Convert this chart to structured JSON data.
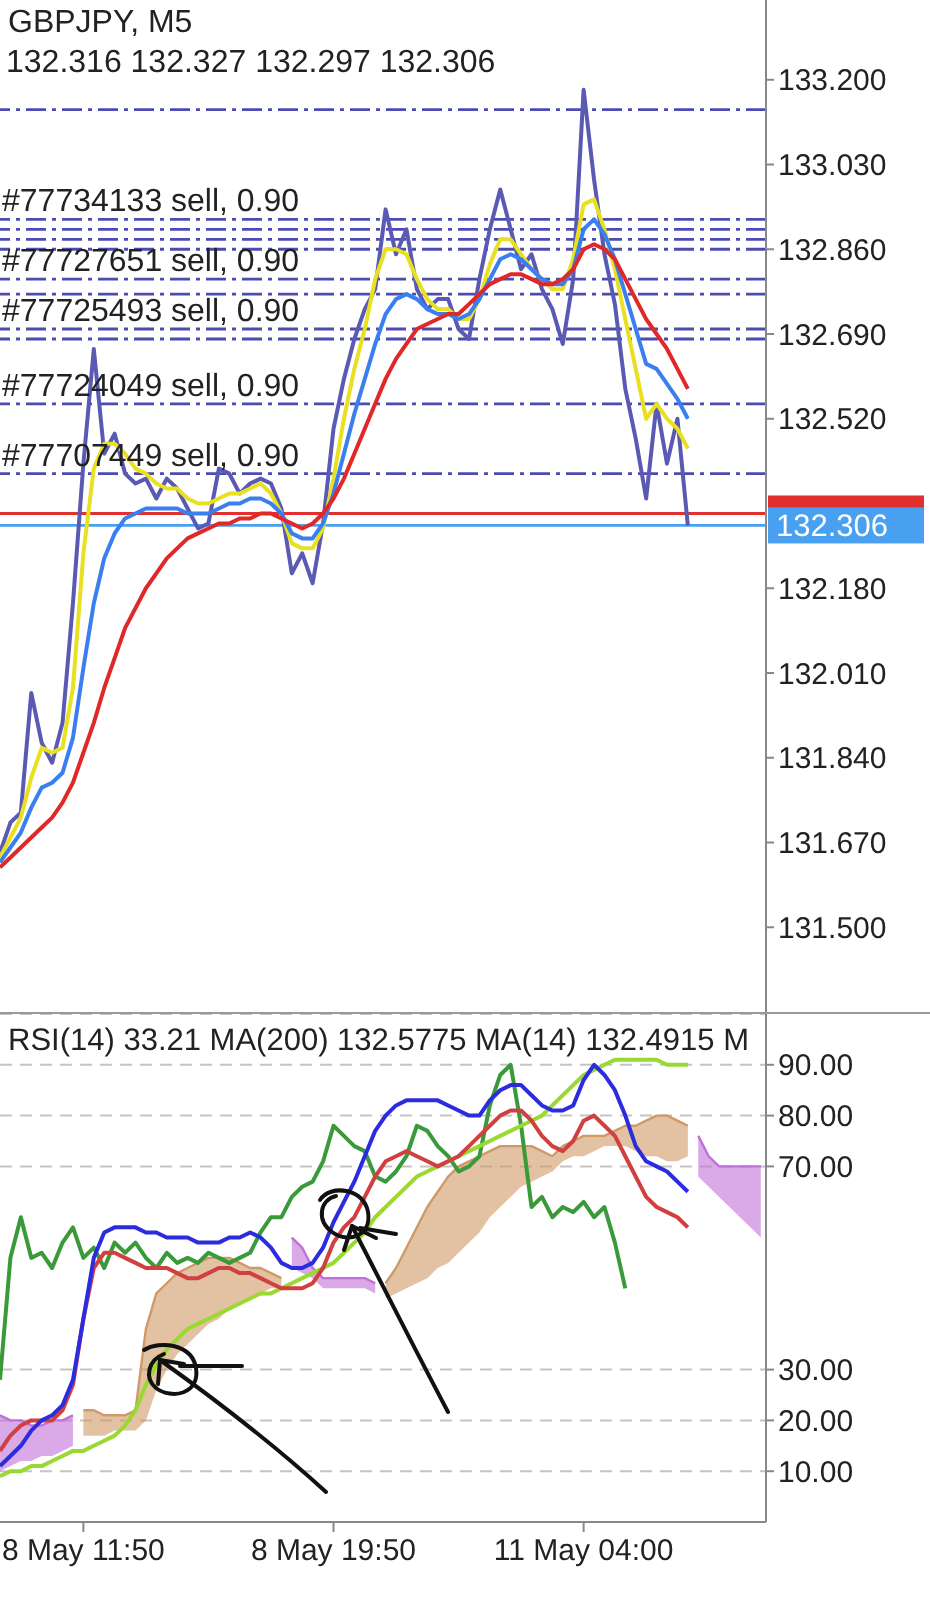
{
  "chart_data": [
    {
      "type": "line",
      "title": "GBPJPY, M5",
      "subtitle": "132.316 132.327 132.297 132.306",
      "categories": [
        null,
        null,
        null,
        null,
        null,
        null,
        null,
        null,
        null,
        null,
        null,
        null,
        null,
        null,
        null,
        null,
        null,
        null,
        null,
        null,
        null,
        null,
        null,
        null,
        null,
        null,
        null,
        null,
        null,
        null,
        null,
        null,
        null,
        null,
        null,
        null,
        null,
        null,
        null,
        null,
        null,
        null,
        null,
        null,
        null,
        null,
        null,
        null,
        null,
        null,
        null,
        null,
        null,
        null,
        null,
        null,
        null,
        null,
        null,
        null,
        null,
        null,
        null,
        null,
        null,
        null,
        null,
        null,
        null,
        null,
        null,
        null,
        null,
        null
      ],
      "series": [
        {
          "color": "#5a5ab4",
          "values": [
            131.65,
            131.71,
            131.73,
            131.97,
            131.87,
            131.83,
            131.91,
            132.15,
            132.43,
            132.66,
            132.45,
            132.49,
            132.41,
            132.39,
            132.4,
            132.36,
            132.4,
            132.38,
            132.34,
            132.3,
            132.31,
            132.42,
            132.41,
            132.37,
            132.39,
            132.4,
            132.39,
            132.34,
            132.21,
            132.25,
            132.19,
            132.31,
            132.5,
            132.6,
            132.68,
            132.74,
            132.78,
            132.94,
            132.85,
            132.9,
            132.78,
            132.74,
            132.76,
            132.76,
            132.7,
            132.68,
            132.8,
            132.9,
            132.98,
            132.9,
            132.82,
            132.85,
            132.78,
            132.74,
            132.67,
            132.8,
            133.18,
            133.0,
            132.85,
            132.75,
            132.58,
            132.48,
            132.36,
            132.55,
            132.43,
            132.52,
            132.306,
            null,
            null,
            null,
            null,
            null,
            null,
            null
          ]
        },
        {
          "color": "#e8e020",
          "values": [
            131.64,
            131.68,
            131.72,
            131.8,
            131.86,
            131.85,
            131.86,
            131.98,
            132.25,
            132.42,
            132.47,
            132.47,
            132.45,
            132.42,
            132.41,
            132.39,
            132.38,
            132.38,
            132.36,
            132.35,
            132.35,
            132.36,
            132.37,
            132.37,
            132.38,
            132.39,
            132.37,
            132.33,
            132.27,
            132.26,
            132.26,
            132.3,
            132.4,
            132.52,
            132.62,
            132.7,
            132.8,
            132.86,
            132.86,
            132.85,
            132.8,
            132.76,
            132.74,
            132.74,
            132.72,
            132.72,
            132.76,
            132.83,
            132.88,
            132.88,
            132.85,
            132.82,
            132.8,
            132.78,
            132.78,
            132.84,
            132.95,
            132.96,
            132.9,
            132.82,
            132.72,
            132.62,
            132.52,
            132.55,
            132.52,
            132.5,
            132.46,
            null,
            null,
            null,
            null,
            null,
            null,
            null
          ]
        },
        {
          "color": "#3a7ff0",
          "values": [
            131.63,
            131.66,
            131.69,
            131.74,
            131.78,
            131.79,
            131.81,
            131.88,
            132.02,
            132.15,
            132.24,
            132.29,
            132.32,
            132.33,
            132.34,
            132.34,
            132.34,
            132.34,
            132.33,
            132.33,
            132.33,
            132.34,
            132.35,
            132.35,
            132.36,
            132.36,
            132.35,
            132.33,
            132.29,
            132.28,
            132.28,
            132.31,
            132.37,
            132.45,
            132.53,
            132.6,
            132.67,
            132.73,
            132.76,
            132.77,
            132.76,
            132.74,
            132.73,
            132.73,
            132.72,
            132.73,
            132.76,
            132.8,
            132.84,
            132.85,
            132.84,
            132.82,
            132.8,
            132.79,
            132.79,
            132.82,
            132.9,
            132.92,
            132.89,
            132.84,
            132.77,
            132.7,
            132.63,
            132.62,
            132.59,
            132.56,
            132.52,
            null,
            null,
            null,
            null,
            null,
            null,
            null
          ]
        },
        {
          "color": "#e02828",
          "values": [
            131.62,
            131.64,
            131.66,
            131.68,
            131.7,
            131.72,
            131.75,
            131.79,
            131.85,
            131.91,
            131.98,
            132.04,
            132.1,
            132.14,
            132.18,
            132.21,
            132.24,
            132.26,
            132.28,
            132.29,
            132.3,
            132.31,
            132.31,
            132.32,
            132.32,
            132.33,
            132.33,
            132.32,
            132.31,
            132.3,
            132.31,
            132.33,
            132.36,
            132.4,
            132.45,
            132.5,
            132.55,
            132.6,
            132.64,
            132.67,
            132.7,
            132.71,
            132.72,
            132.73,
            132.73,
            132.75,
            132.77,
            132.79,
            132.8,
            132.81,
            132.81,
            132.8,
            132.79,
            132.79,
            132.8,
            132.82,
            132.86,
            132.87,
            132.86,
            132.84,
            132.8,
            132.76,
            132.72,
            132.69,
            132.66,
            132.62,
            132.58,
            null,
            null,
            null,
            null,
            null,
            null,
            null
          ]
        }
      ],
      "ylim": [
        131.33,
        133.36
      ],
      "yticks": [
        {
          "value": 131.5,
          "label": "131.500"
        },
        {
          "value": 131.67,
          "label": "131.670"
        },
        {
          "value": 131.84,
          "label": "131.840"
        },
        {
          "value": 132.01,
          "label": "132.010"
        },
        {
          "value": 132.18,
          "label": "132.180"
        },
        {
          "value": 132.52,
          "label": "132.520"
        },
        {
          "value": 132.69,
          "label": "132.690"
        },
        {
          "value": 132.86,
          "label": "132.860"
        },
        {
          "value": 133.03,
          "label": "133.030"
        },
        {
          "value": 133.2,
          "label": "133.200"
        }
      ],
      "ref_lines": [
        {
          "axis": "y",
          "value": 133.14,
          "color": "#4b4bb0",
          "line_style": "dashed"
        },
        {
          "axis": "y",
          "value": 132.92,
          "label": "#77734133 sell, 0.90",
          "color": "#4b4bb0",
          "line_style": "dashed"
        },
        {
          "axis": "y",
          "value": 132.9,
          "color": "#4b4bb0",
          "line_style": "dashed"
        },
        {
          "axis": "y",
          "value": 132.88,
          "color": "#4b4bb0",
          "line_style": "dashed"
        },
        {
          "axis": "y",
          "value": 132.86,
          "color": "#4b4bb0",
          "line_style": "dashed"
        },
        {
          "axis": "y",
          "value": 132.8,
          "label": "#77727651 sell, 0.90",
          "color": "#4b4bb0",
          "line_style": "dashed"
        },
        {
          "axis": "y",
          "value": 132.77,
          "color": "#4b4bb0",
          "line_style": "dashed"
        },
        {
          "axis": "y",
          "value": 132.7,
          "label": "#77725493 sell, 0.90",
          "color": "#4b4bb0",
          "line_style": "dashed"
        },
        {
          "axis": "y",
          "value": 132.68,
          "color": "#4b4bb0",
          "line_style": "dashed"
        },
        {
          "axis": "y",
          "value": 132.55,
          "label": "#77724049 sell, 0.90",
          "color": "#4b4bb0",
          "line_style": "dashed"
        },
        {
          "axis": "y",
          "value": 132.41,
          "label": "#77707449 sell, 0.90",
          "color": "#4b4bb0",
          "line_style": "dashed"
        },
        {
          "axis": "y",
          "value": 132.33,
          "color": "#e03030",
          "line_style": "solid"
        },
        {
          "axis": "y",
          "value": 132.306,
          "label": "132.306",
          "color": "#4aa0f0",
          "line_style": "solid"
        }
      ],
      "tick_labels": "y"
    },
    {
      "type": "line",
      "title": "RSI(14) 33.21 MA(200) 132.5775 MA(14) 132.4915 M",
      "categories": [
        null,
        null,
        null,
        null,
        null,
        null,
        null,
        null,
        "8 May 11:50",
        null,
        null,
        null,
        null,
        null,
        null,
        null,
        null,
        null,
        null,
        null,
        null,
        null,
        null,
        null,
        null,
        null,
        null,
        null,
        null,
        null,
        null,
        null,
        "8 May 19:50",
        null,
        null,
        null,
        null,
        null,
        null,
        null,
        null,
        null,
        null,
        null,
        null,
        null,
        null,
        null,
        null,
        null,
        null,
        null,
        null,
        null,
        null,
        null,
        "11 May 04:00",
        null,
        null,
        null,
        null,
        null,
        null,
        null,
        null,
        null,
        null,
        null,
        null,
        null,
        null,
        null,
        null,
        null
      ],
      "series": [
        {
          "color": "#d09a68",
          "values": [
            null,
            null,
            null,
            null,
            null,
            null,
            null,
            null,
            22,
            22,
            21,
            21,
            21,
            22,
            38,
            45,
            47,
            49,
            50,
            51,
            52,
            52,
            52,
            51,
            50,
            50,
            49,
            48,
            null,
            null,
            null,
            null,
            null,
            null,
            null,
            null,
            null,
            47,
            50,
            54,
            58,
            62,
            65,
            68,
            70,
            71,
            72,
            73,
            74,
            74,
            74,
            74,
            73,
            72,
            74,
            75,
            76,
            76,
            76,
            77,
            78,
            78,
            79,
            80,
            80,
            79,
            78,
            null,
            null,
            null,
            null,
            null,
            null,
            null
          ],
          "lower": [
            null,
            null,
            null,
            null,
            null,
            null,
            null,
            null,
            17,
            17,
            17,
            18,
            18,
            18,
            20,
            26,
            30,
            33,
            35,
            37,
            39,
            40,
            42,
            43,
            44,
            45,
            46,
            46,
            null,
            null,
            null,
            null,
            null,
            null,
            null,
            null,
            null,
            44,
            45,
            46,
            47,
            48,
            50,
            51,
            53,
            55,
            57,
            60,
            62,
            64,
            66,
            67,
            68,
            69,
            71,
            72,
            72,
            73,
            74,
            74,
            74,
            73,
            72,
            72,
            71,
            71,
            72,
            null,
            null,
            null,
            null,
            null,
            null,
            null
          ],
          "upper": [
            null,
            null,
            null,
            null,
            null,
            null,
            null,
            null,
            22,
            22,
            21,
            21,
            21,
            22,
            38,
            45,
            47,
            49,
            50,
            51,
            52,
            52,
            52,
            51,
            50,
            50,
            49,
            48,
            null,
            null,
            null,
            null,
            null,
            null,
            null,
            null,
            null,
            47,
            50,
            54,
            58,
            62,
            65,
            68,
            70,
            71,
            72,
            73,
            74,
            74,
            74,
            74,
            73,
            72,
            74,
            75,
            76,
            76,
            76,
            77,
            78,
            78,
            79,
            80,
            80,
            79,
            78,
            null,
            null,
            null,
            null,
            null,
            null,
            null
          ]
        },
        {
          "color": "#c070d8",
          "values": [
            21,
            20,
            20,
            19,
            19,
            20,
            20,
            21,
            null,
            null,
            null,
            null,
            null,
            null,
            null,
            null,
            null,
            null,
            null,
            null,
            null,
            null,
            null,
            null,
            null,
            null,
            null,
            null,
            56,
            54,
            50,
            48,
            48,
            48,
            48,
            48,
            47,
            null,
            null,
            null,
            null,
            null,
            null,
            null,
            null,
            null,
            null,
            null,
            null,
            null,
            null,
            null,
            null,
            null,
            null,
            null,
            null,
            null,
            null,
            null,
            null,
            null,
            null,
            null,
            null,
            null,
            null,
            76,
            72,
            70,
            70,
            70,
            70,
            70
          ],
          "lower": [
            10,
            11,
            12,
            12,
            13,
            13,
            14,
            15,
            null,
            null,
            null,
            null,
            null,
            null,
            null,
            null,
            null,
            null,
            null,
            null,
            null,
            null,
            null,
            null,
            null,
            null,
            null,
            null,
            50,
            49,
            48,
            46,
            46,
            46,
            46,
            46,
            45,
            null,
            null,
            null,
            null,
            null,
            null,
            null,
            null,
            null,
            null,
            null,
            null,
            null,
            null,
            null,
            null,
            null,
            null,
            null,
            null,
            null,
            null,
            null,
            null,
            null,
            null,
            null,
            null,
            null,
            null,
            68,
            66,
            64,
            62,
            60,
            58,
            56
          ],
          "upper": [
            21,
            20,
            20,
            19,
            19,
            20,
            20,
            21,
            null,
            null,
            null,
            null,
            null,
            null,
            null,
            null,
            null,
            null,
            null,
            null,
            null,
            null,
            null,
            null,
            null,
            null,
            null,
            null,
            56,
            54,
            50,
            48,
            48,
            48,
            48,
            48,
            47,
            null,
            null,
            null,
            null,
            null,
            null,
            null,
            null,
            null,
            null,
            null,
            null,
            null,
            null,
            null,
            null,
            null,
            null,
            null,
            null,
            null,
            null,
            null,
            null,
            null,
            null,
            null,
            null,
            null,
            null,
            76,
            72,
            70,
            70,
            70,
            70,
            70
          ]
        },
        {
          "color": "#3a9a3a",
          "values": [
            28,
            52,
            60,
            52,
            53,
            50,
            55,
            58,
            52,
            54,
            50,
            55,
            53,
            55,
            52,
            50,
            53,
            51,
            52,
            51,
            53,
            52,
            51,
            52,
            53,
            57,
            60,
            60,
            64,
            66,
            67,
            71,
            78,
            76,
            74,
            73,
            68,
            67,
            69,
            72,
            78,
            77,
            74,
            72,
            69,
            70,
            72,
            82,
            88,
            90,
            78,
            62,
            64,
            60,
            62,
            61,
            63,
            60,
            62,
            55,
            46,
            null,
            null,
            null,
            null,
            null,
            null,
            null,
            null,
            null,
            null,
            null,
            null,
            null
          ]
        },
        {
          "color": "#9ad832",
          "values": [
            9,
            10,
            10,
            11,
            11,
            12,
            13,
            14,
            14,
            15,
            16,
            17,
            19,
            22,
            27,
            31,
            34,
            36,
            38,
            39,
            40,
            41,
            42,
            43,
            44,
            45,
            45,
            46,
            47,
            48,
            49,
            50,
            51,
            53,
            55,
            57,
            60,
            62,
            64,
            66,
            68,
            69,
            70,
            71,
            72,
            73,
            74,
            75,
            76,
            77,
            78,
            79,
            80,
            82,
            84,
            86,
            88,
            89,
            90,
            91,
            91,
            91,
            91,
            91,
            90,
            90,
            90,
            null,
            null,
            null,
            null,
            null,
            null,
            null
          ]
        },
        {
          "color": "#d04040",
          "values": [
            14,
            17,
            19,
            20,
            20,
            20,
            22,
            27,
            40,
            50,
            53,
            53,
            52,
            51,
            50,
            50,
            50,
            49,
            48,
            48,
            49,
            50,
            50,
            49,
            49,
            48,
            47,
            46,
            46,
            46,
            47,
            50,
            55,
            58,
            60,
            64,
            68,
            71,
            72,
            73,
            72,
            71,
            70,
            71,
            72,
            74,
            76,
            78,
            80,
            81,
            81,
            79,
            76,
            74,
            73,
            75,
            79,
            80,
            78,
            76,
            72,
            68,
            64,
            62,
            61,
            60,
            58,
            null,
            null,
            null,
            null,
            null,
            null,
            null
          ]
        },
        {
          "color": "#2b2be0",
          "values": [
            11,
            13,
            15,
            18,
            20,
            21,
            23,
            28,
            40,
            52,
            57,
            58,
            58,
            58,
            57,
            57,
            56,
            56,
            56,
            55,
            55,
            55,
            56,
            56,
            57,
            56,
            54,
            51,
            50,
            50,
            51,
            54,
            59,
            63,
            67,
            72,
            77,
            80,
            82,
            83,
            83,
            83,
            83,
            82,
            81,
            80,
            80,
            83,
            85,
            86,
            86,
            84,
            82,
            81,
            81,
            82,
            87,
            90,
            88,
            85,
            80,
            74,
            71,
            70,
            69,
            67,
            65,
            null,
            null,
            null,
            null,
            null,
            null,
            null
          ]
        }
      ],
      "ylim": [
        0,
        100
      ],
      "yticks": [
        {
          "value": 10,
          "label": "10.00"
        },
        {
          "value": 20,
          "label": "20.00"
        },
        {
          "value": 30,
          "label": "30.00"
        },
        {
          "value": 70,
          "label": "70.00"
        },
        {
          "value": 80,
          "label": "80.00"
        },
        {
          "value": 90,
          "label": "90.00"
        }
      ],
      "grid": "y"
    }
  ]
}
